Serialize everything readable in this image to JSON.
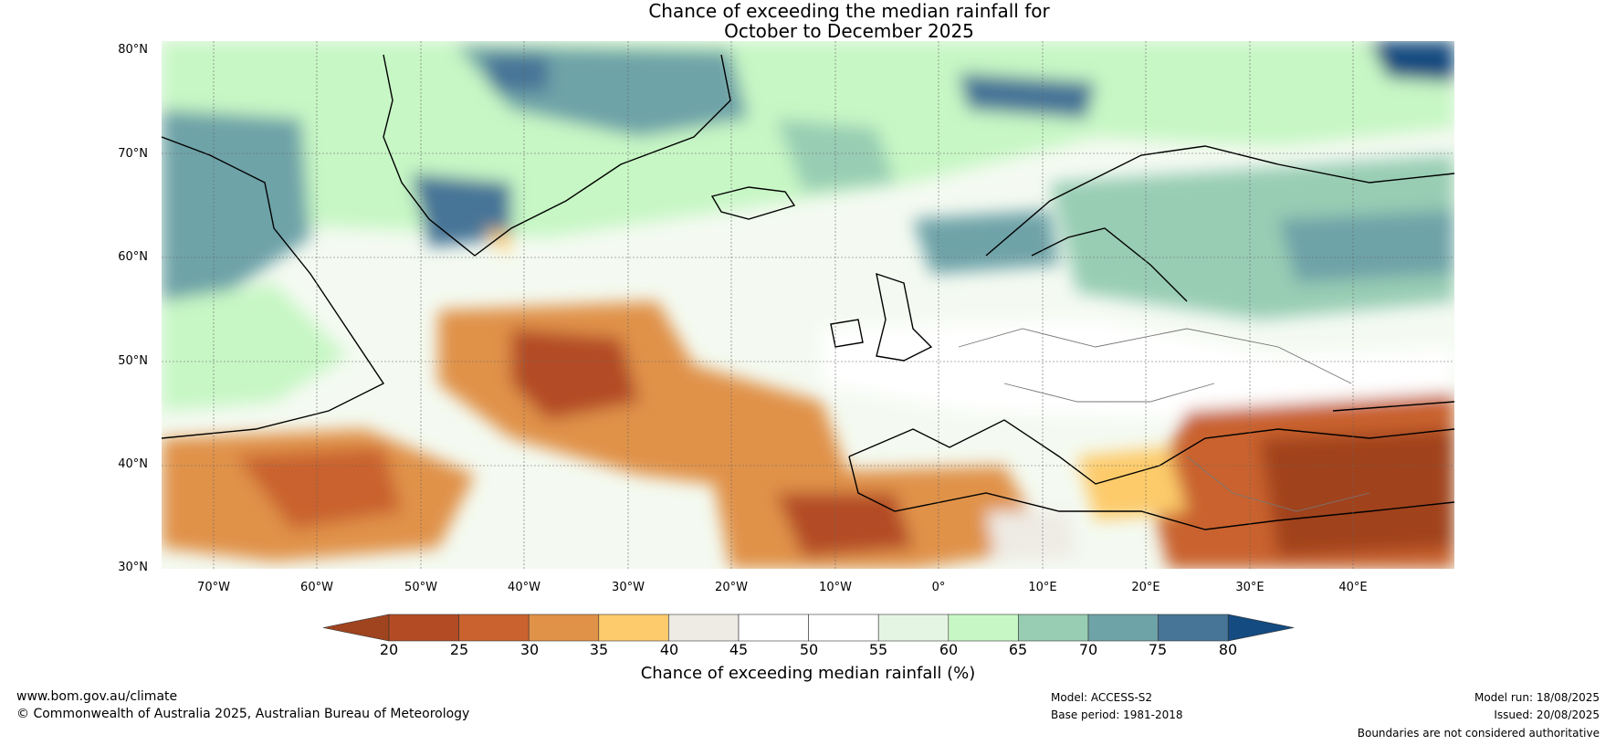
{
  "title_line1": "Chance of exceeding the median rainfall for",
  "title_line2": "October to December 2025",
  "lat_labels": [
    "80°N",
    "70°N",
    "60°N",
    "50°N",
    "40°N",
    "30°N"
  ],
  "lon_labels": [
    "70°W",
    "60°W",
    "50°W",
    "40°W",
    "30°W",
    "20°W",
    "10°W",
    "0°",
    "10°E",
    "20°E",
    "30°E",
    "40°E"
  ],
  "colorbar": {
    "ticks": [
      "20",
      "25",
      "30",
      "35",
      "40",
      "45",
      "50",
      "55",
      "60",
      "65",
      "70",
      "75",
      "80"
    ],
    "colors": [
      "#a0431f",
      "#b34c25",
      "#c9622f",
      "#e09248",
      "#fdcb6b",
      "#eeebe4",
      "#ffffff",
      "#ffffff",
      "#e5f5e3",
      "#c7f7c5",
      "#98cdb3",
      "#6ea3a8",
      "#467597",
      "#144b80"
    ],
    "label": "Chance of exceeding median rainfall (%)"
  },
  "footer": {
    "website": "www.bom.gov.au/climate",
    "copyright": "© Commonwealth of Australia 2025, Australian Bureau of Meteorology",
    "model": "Model: ACCESS-S2",
    "base_period": "Base period: 1981-2018",
    "model_run": "Model run: 18/08/2025",
    "issued": "Issued: 20/08/2025",
    "disclaimer": "Boundaries are not considered authoritative"
  }
}
